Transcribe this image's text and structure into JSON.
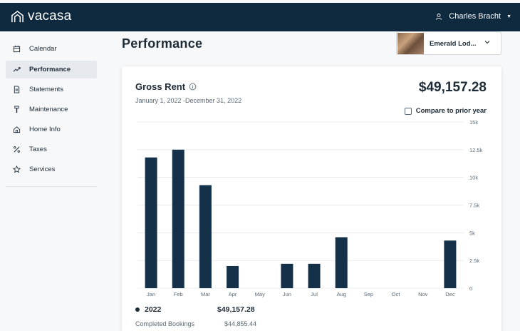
{
  "app": {
    "logo_text": "vacasa",
    "user_name": "Charles Bracht"
  },
  "sidebar": {
    "items": [
      {
        "label": "Calendar",
        "icon": "calendar-icon",
        "active": false
      },
      {
        "label": "Performance",
        "icon": "trend-icon",
        "active": true
      },
      {
        "label": "Statements",
        "icon": "document-icon",
        "active": false
      },
      {
        "label": "Maintenance",
        "icon": "tool-icon",
        "active": false
      },
      {
        "label": "Home Info",
        "icon": "home-icon",
        "active": false
      },
      {
        "label": "Taxes",
        "icon": "percent-icon",
        "active": false
      },
      {
        "label": "Services",
        "icon": "star-icon",
        "active": false
      }
    ]
  },
  "page": {
    "title": "Performance"
  },
  "property_select": {
    "value": "Emerald Lod..."
  },
  "metric": {
    "title": "Gross Rent",
    "date_range": "January 1, 2022 -December 31, 2022",
    "total": "$49,157.28",
    "compare_label": "Compare to prior year"
  },
  "legend": {
    "year": "2022",
    "total": "$49,157.28",
    "sub_label": "Completed Bookings",
    "sub_value": "$44,855.44"
  },
  "colors": {
    "brand_navy": "#0f2a3e",
    "bar": "#15314a",
    "grid": "#e3e7ea"
  },
  "chart_data": {
    "type": "bar",
    "title": "Gross Rent",
    "categories": [
      "Jan",
      "Feb",
      "Mar",
      "Apr",
      "May",
      "Jun",
      "Jul",
      "Aug",
      "Sep",
      "Oct",
      "Nov",
      "Dec"
    ],
    "series": [
      {
        "name": "2022",
        "values": [
          11800,
          12500,
          9300,
          2000,
          0,
          2200,
          2200,
          4600,
          0,
          0,
          0,
          4300
        ]
      }
    ],
    "yticks": [
      "0",
      "2.5k",
      "5k",
      "7.5k",
      "10k",
      "12.5k",
      "15k"
    ],
    "ylim": [
      0,
      15000
    ],
    "y_axis_side": "right",
    "grid": true
  }
}
